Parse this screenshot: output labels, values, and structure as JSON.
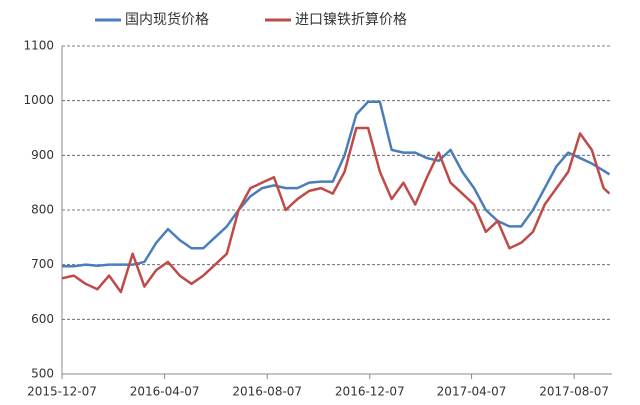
{
  "chart_data": {
    "type": "line",
    "x": [
      "2015-12-07",
      "2015-12-21",
      "2016-01-04",
      "2016-01-18",
      "2016-02-01",
      "2016-02-15",
      "2016-02-29",
      "2016-03-14",
      "2016-03-28",
      "2016-04-11",
      "2016-04-25",
      "2016-05-09",
      "2016-05-23",
      "2016-06-06",
      "2016-06-20",
      "2016-07-04",
      "2016-07-18",
      "2016-08-01",
      "2016-08-15",
      "2016-08-29",
      "2016-09-12",
      "2016-09-26",
      "2016-10-10",
      "2016-10-24",
      "2016-11-07",
      "2016-11-21",
      "2016-12-05",
      "2016-12-19",
      "2017-01-02",
      "2017-01-16",
      "2017-01-30",
      "2017-02-13",
      "2017-02-27",
      "2017-03-13",
      "2017-03-27",
      "2017-04-10",
      "2017-04-24",
      "2017-05-08",
      "2017-05-22",
      "2017-06-05",
      "2017-06-19",
      "2017-07-03",
      "2017-07-17",
      "2017-07-31",
      "2017-08-14",
      "2017-08-28",
      "2017-09-11",
      "2017-09-18"
    ],
    "series": [
      {
        "name": "国内现货价格",
        "color": "#4a7ebb",
        "values": [
          697,
          697,
          700,
          698,
          700,
          700,
          700,
          705,
          740,
          765,
          745,
          730,
          730,
          750,
          770,
          800,
          825,
          840,
          845,
          840,
          840,
          850,
          852,
          852,
          900,
          975,
          998,
          998,
          910,
          905,
          905,
          895,
          890,
          910,
          870,
          840,
          800,
          780,
          770,
          770,
          800,
          840,
          880,
          905,
          895,
          885,
          872,
          865
        ]
      },
      {
        "name": "进口镍铁折算价格",
        "color": "#be4b48",
        "values": [
          675,
          680,
          665,
          655,
          680,
          650,
          720,
          660,
          690,
          705,
          680,
          665,
          680,
          700,
          720,
          800,
          840,
          850,
          860,
          800,
          820,
          835,
          840,
          830,
          870,
          950,
          950,
          870,
          820,
          850,
          810,
          860,
          905,
          850,
          830,
          810,
          760,
          780,
          730,
          740,
          760,
          810,
          840,
          870,
          940,
          910,
          840,
          830
        ]
      }
    ],
    "xlim": [
      "2015-12-07",
      "2017-09-21"
    ],
    "xticks": [
      "2015-12-07",
      "2016-04-07",
      "2016-08-07",
      "2016-12-07",
      "2017-04-07",
      "2017-08-07"
    ],
    "ylim": [
      500,
      1100
    ],
    "yticks": [
      500,
      600,
      700,
      800,
      900,
      1000,
      1100
    ],
    "grid": true
  }
}
